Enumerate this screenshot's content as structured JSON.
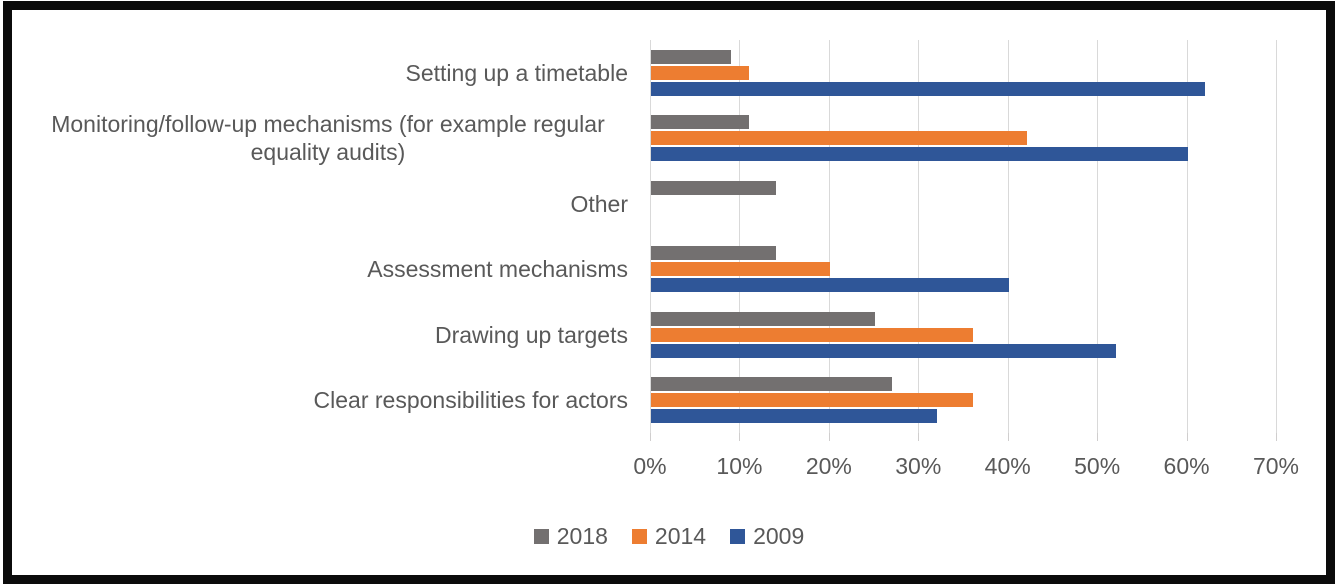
{
  "chart_data": {
    "type": "bar",
    "orientation": "horizontal",
    "title": "",
    "xlabel": "",
    "ylabel": "",
    "categories": [
      "Setting up a timetable",
      "Monitoring/follow-up mechanisms (for example regular equality audits)",
      "Other",
      "Assessment mechanisms",
      "Drawing up targets",
      "Clear responsibilities for actors"
    ],
    "series": [
      {
        "name": "2018",
        "color": "#737070",
        "values": [
          9,
          11,
          14,
          14,
          25,
          27
        ]
      },
      {
        "name": "2014",
        "color": "#ED7D31",
        "values": [
          11,
          42,
          0,
          20,
          36,
          36
        ]
      },
      {
        "name": "2009",
        "color": "#2F5698",
        "values": [
          62,
          60,
          0,
          40,
          52,
          32
        ]
      }
    ],
    "x_ticks": [
      "0%",
      "10%",
      "20%",
      "30%",
      "40%",
      "50%",
      "60%",
      "70%"
    ],
    "xlim": [
      0,
      70
    ],
    "grid": "vertical-major",
    "legend_position": "bottom"
  },
  "colors": {
    "gridline": "#D9D9D9",
    "tick_mark": "#D0CECE",
    "text": "#595959",
    "background": "#FFFFFF",
    "frame_border": "#0B0B0B"
  }
}
